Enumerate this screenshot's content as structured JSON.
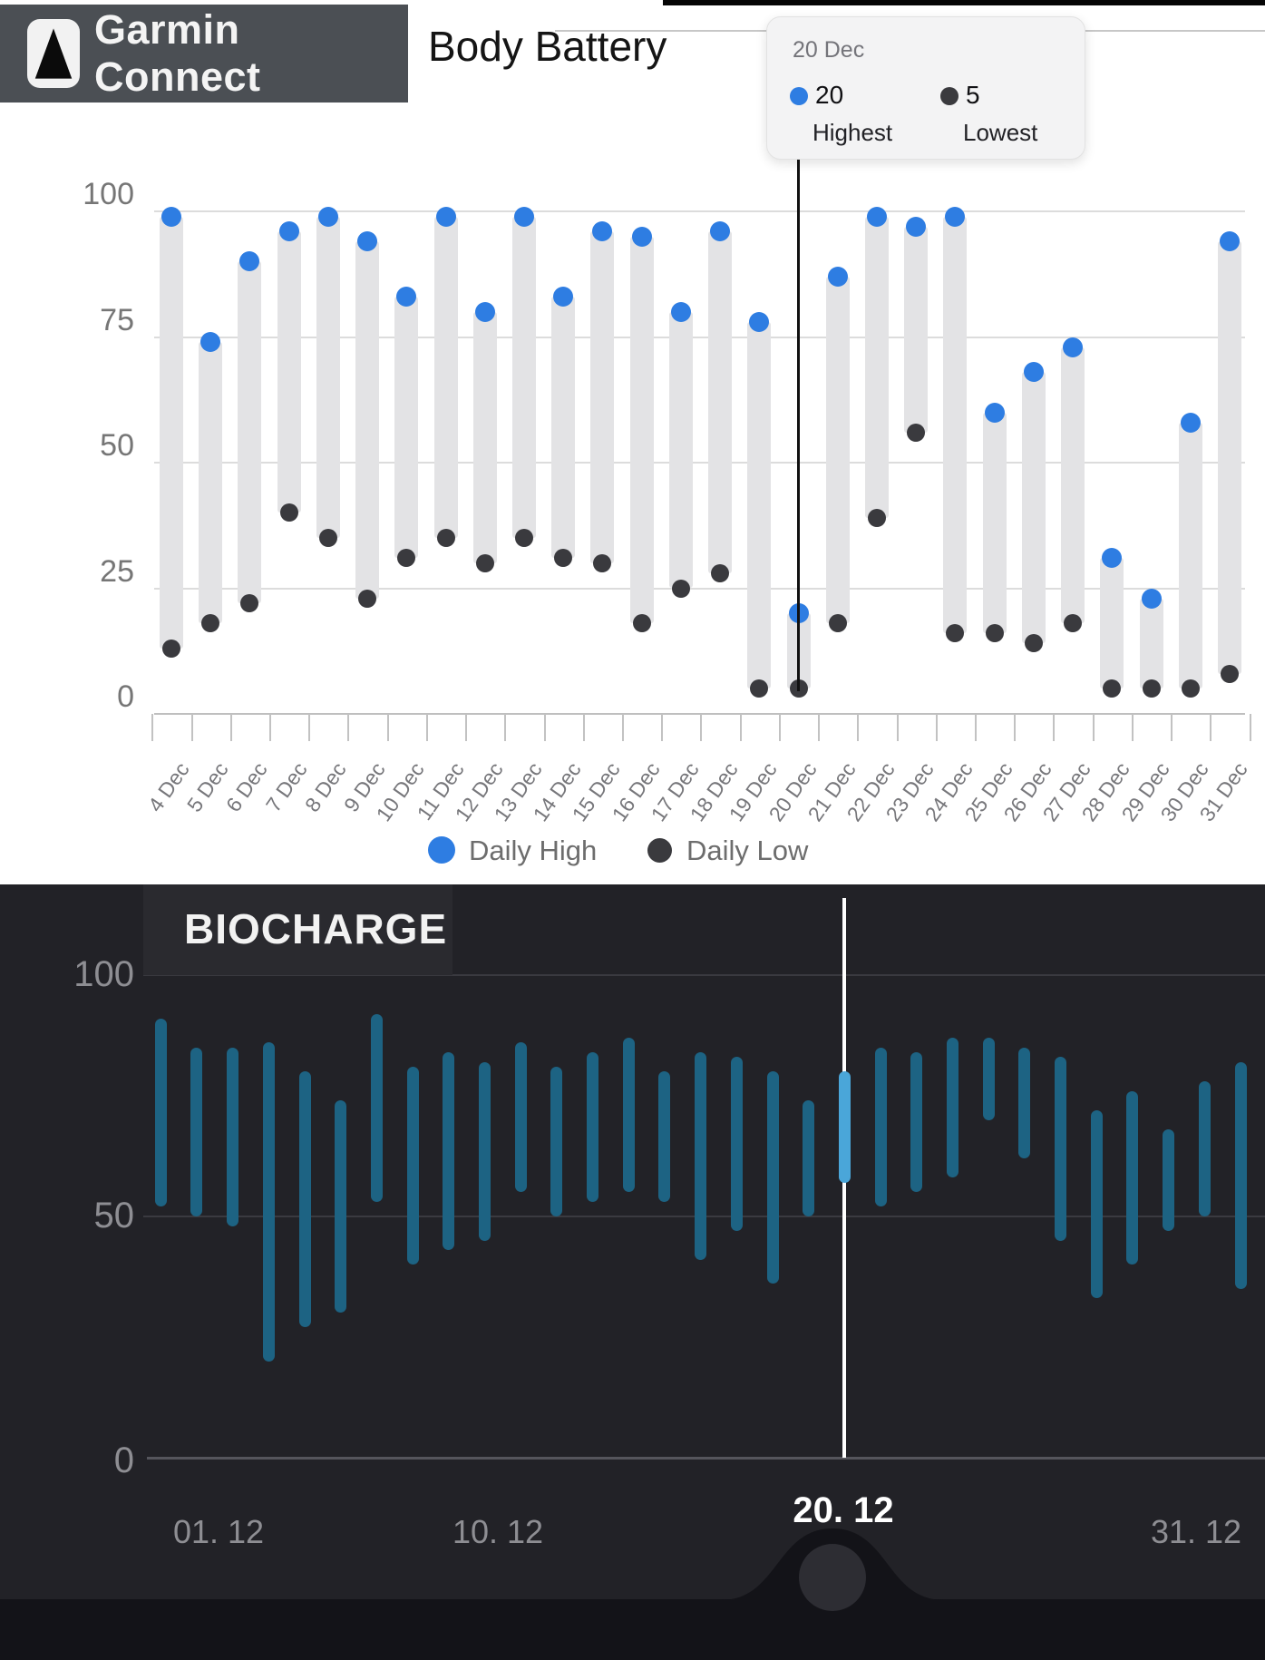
{
  "header": {
    "app_name": "Garmin Connect",
    "page_title": "Body Battery"
  },
  "tooltip": {
    "date": "20 Dec",
    "highest": {
      "value": "20",
      "label": "Highest"
    },
    "lowest": {
      "value": "5",
      "label": "Lowest"
    }
  },
  "legend": {
    "high": "Daily High",
    "low": "Daily Low"
  },
  "colors": {
    "accent_blue": "#2e7de2",
    "dark_dot": "#3a3a3e",
    "range_bar": "#e3e3e5",
    "bio_bar": "#1d6383",
    "bio_bar_highlight": "#4aa6d9",
    "bio_background": "#222227",
    "bio_track": "#131318"
  },
  "chart_data": [
    {
      "type": "bar",
      "subtype": "range-dumbbell",
      "title": "Body Battery",
      "categories": [
        "4 Dec",
        "5 Dec",
        "6 Dec",
        "7 Dec",
        "8 Dec",
        "9 Dec",
        "10 Dec",
        "11 Dec",
        "12 Dec",
        "13 Dec",
        "14 Dec",
        "15 Dec",
        "16 Dec",
        "17 Dec",
        "18 Dec",
        "19 Dec",
        "20 Dec",
        "21 Dec",
        "22 Dec",
        "23 Dec",
        "24 Dec",
        "25 Dec",
        "26 Dec",
        "27 Dec",
        "28 Dec",
        "29 Dec",
        "30 Dec",
        "31 Dec"
      ],
      "series": [
        {
          "name": "Daily High",
          "values": [
            99,
            74,
            90,
            96,
            99,
            94,
            83,
            99,
            80,
            99,
            83,
            96,
            95,
            80,
            96,
            78,
            20,
            87,
            99,
            97,
            99,
            60,
            68,
            73,
            31,
            23,
            58,
            94
          ]
        },
        {
          "name": "Daily Low",
          "values": [
            13,
            18,
            22,
            40,
            35,
            23,
            31,
            35,
            30,
            35,
            31,
            30,
            18,
            25,
            28,
            5,
            5,
            18,
            39,
            56,
            16,
            16,
            14,
            18,
            5,
            5,
            5,
            8
          ]
        }
      ],
      "ylim": [
        0,
        100
      ],
      "yticks": [
        0,
        25,
        50,
        75,
        100
      ],
      "grid": true,
      "legend_position": "bottom",
      "selected_category": "20 Dec",
      "selected_values": {
        "highest": 20,
        "lowest": 5
      }
    },
    {
      "type": "bar",
      "subtype": "floating-range",
      "title": "BIOCHARGE",
      "days": [
        1,
        2,
        3,
        4,
        5,
        6,
        7,
        8,
        9,
        10,
        11,
        12,
        13,
        14,
        15,
        16,
        17,
        18,
        19,
        20,
        21,
        22,
        23,
        24,
        25,
        26,
        27,
        28,
        29,
        30,
        31
      ],
      "series": [
        {
          "name": "low",
          "values": [
            52,
            50,
            48,
            20,
            27,
            30,
            53,
            40,
            43,
            45,
            55,
            50,
            53,
            55,
            53,
            41,
            47,
            36,
            50,
            57,
            52,
            55,
            58,
            70,
            62,
            45,
            33,
            40,
            47,
            50,
            35
          ]
        },
        {
          "name": "high",
          "values": [
            91,
            85,
            85,
            86,
            80,
            74,
            92,
            81,
            84,
            82,
            86,
            81,
            84,
            87,
            80,
            84,
            83,
            80,
            74,
            80,
            85,
            84,
            87,
            87,
            85,
            83,
            72,
            76,
            68,
            78,
            82
          ]
        }
      ],
      "xtick_labels": [
        "01. 12",
        "10. 12",
        "20. 12",
        "31. 12"
      ],
      "ylim": [
        0,
        100
      ],
      "yticks": [
        0,
        50,
        100
      ],
      "highlighted_day": 20,
      "legend_position": "none"
    }
  ]
}
